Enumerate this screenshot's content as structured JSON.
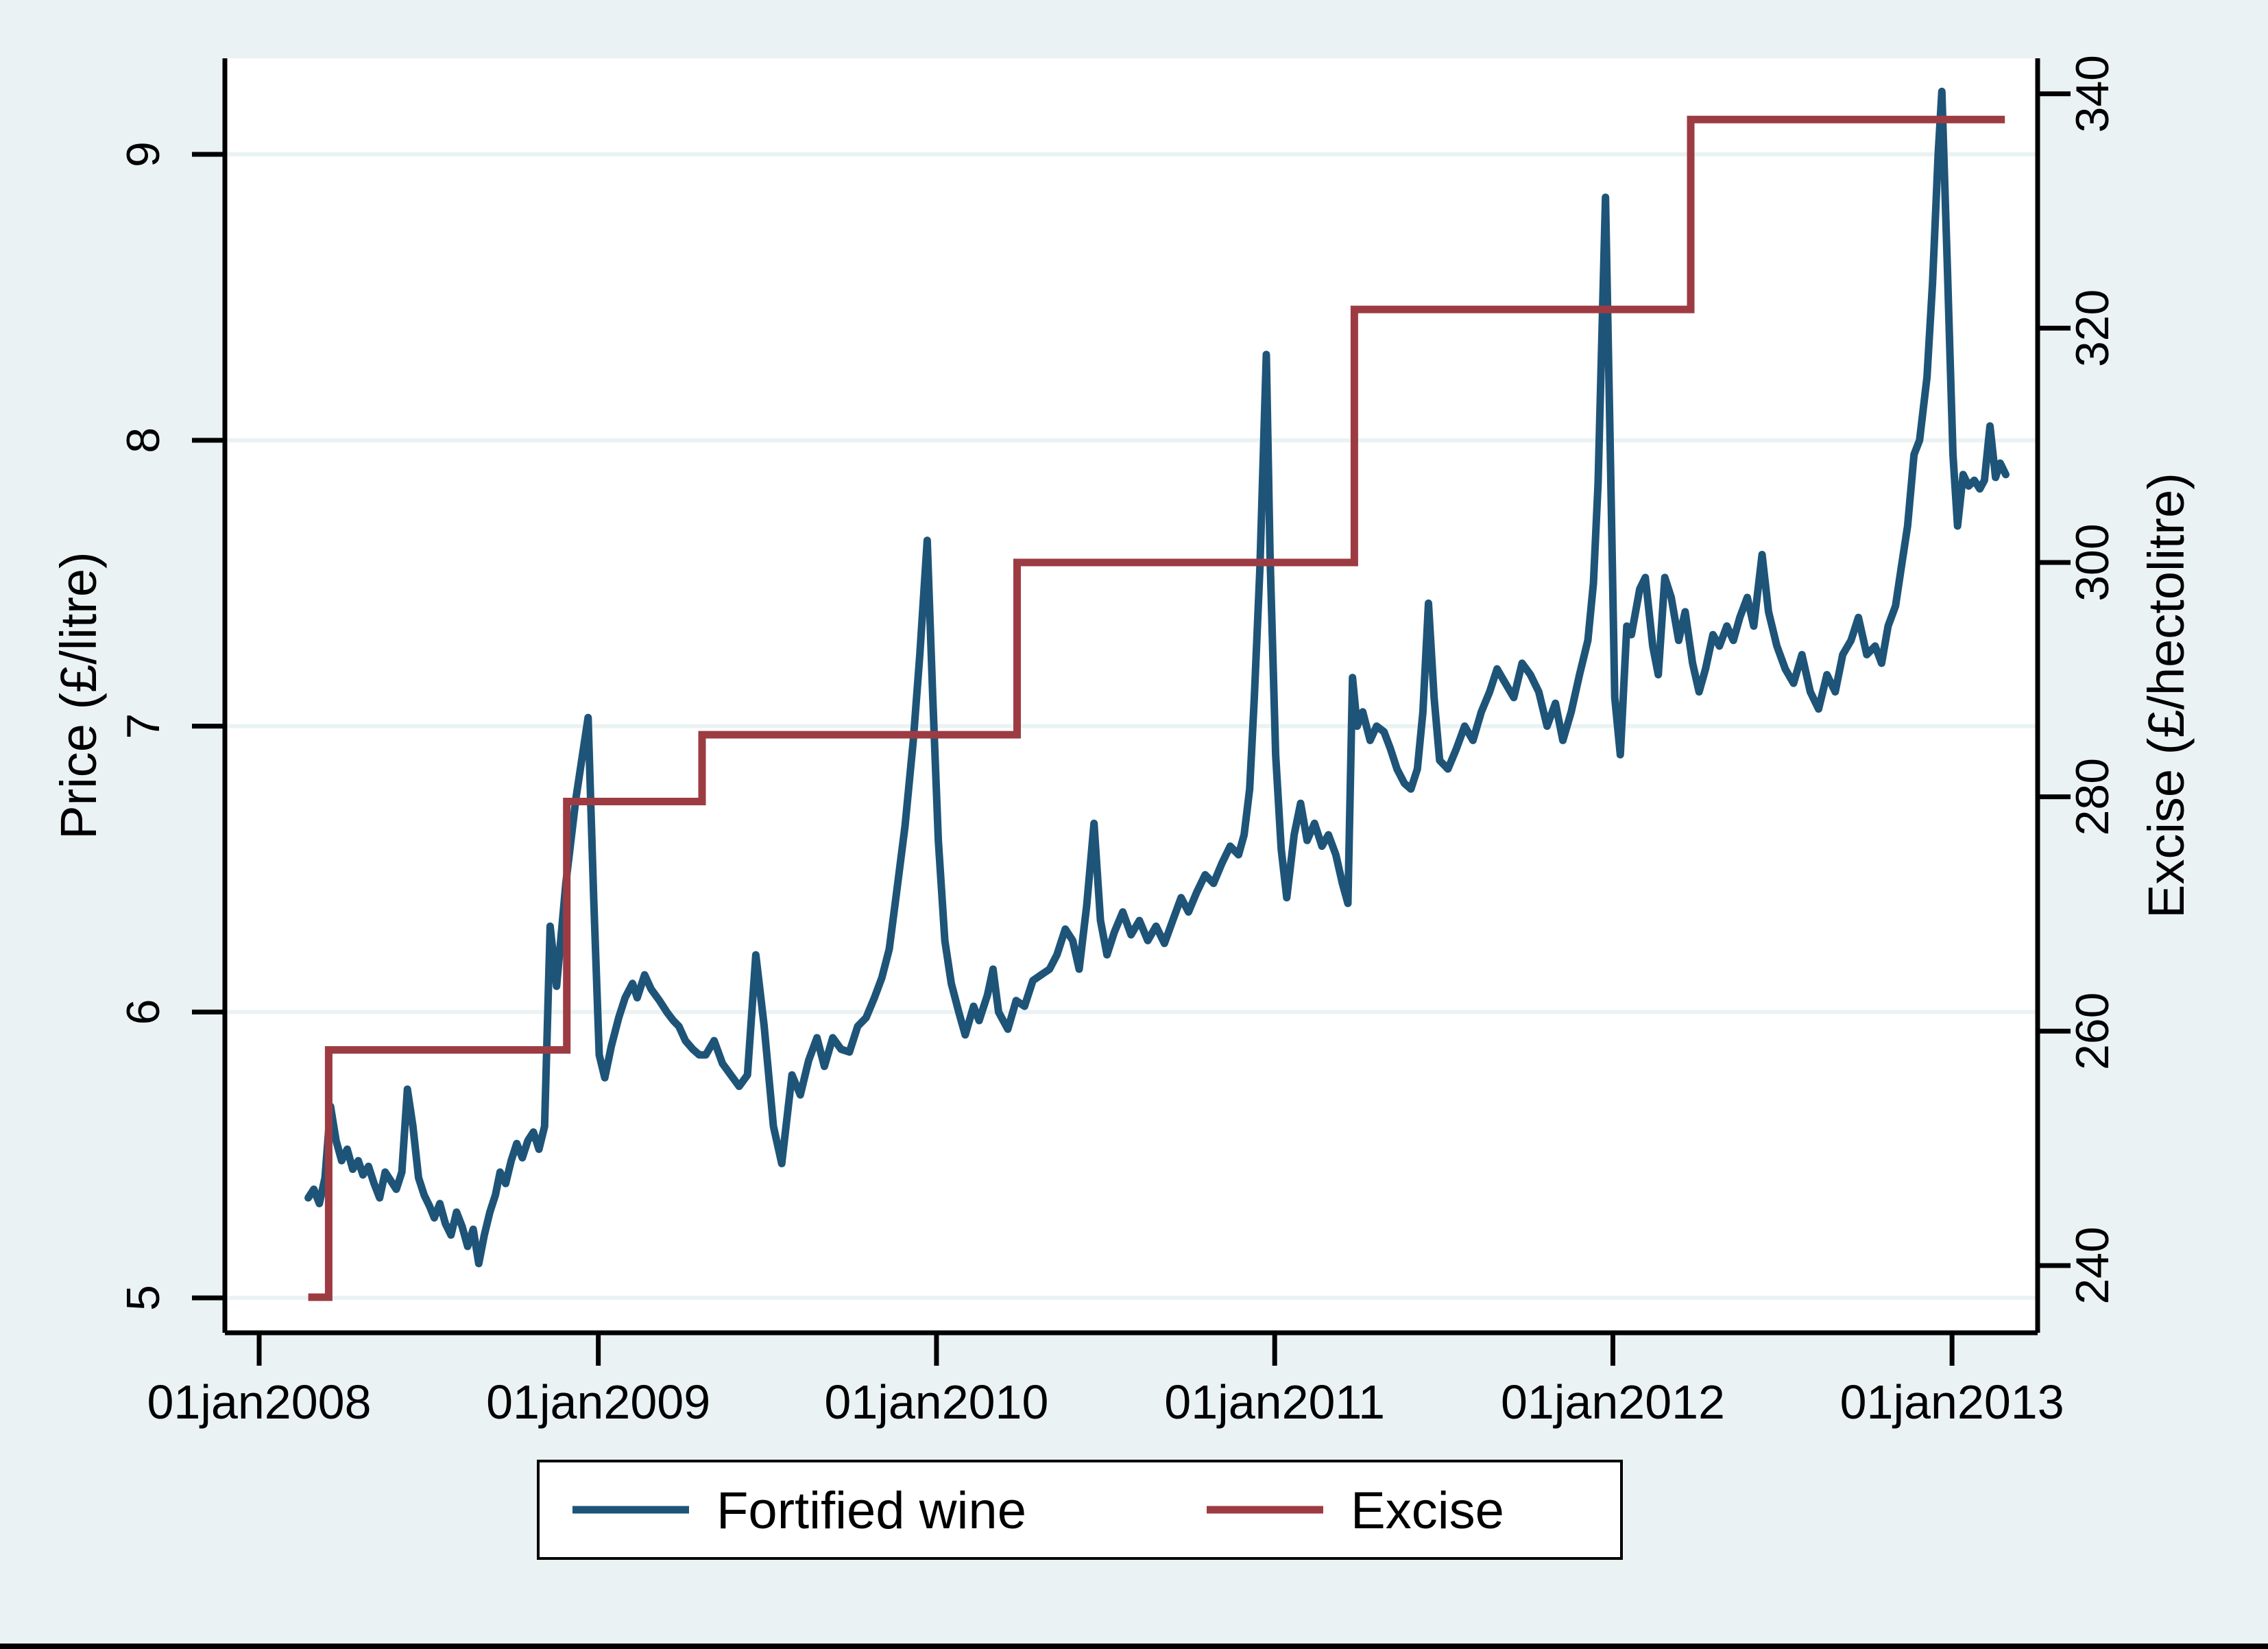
{
  "figure": {
    "colors": {
      "outer_background": "#eaf2f3",
      "plot_background": "#ffffff",
      "gridline": "#eaf2f3",
      "axis": "#000000",
      "wine_line": "#1e5478",
      "excise_line": "#9d3b43",
      "legend_fill": "#ffffff",
      "legend_border": "#000000",
      "bottom_edge": "#000000"
    }
  },
  "chart_data": {
    "type": "line",
    "title": "",
    "grid": "horizontal-only",
    "x_axis": {
      "tick_labels": [
        "01jan2008",
        "01jan2009",
        "01jan2010",
        "01jan2011",
        "01jan2012",
        "01jan2013"
      ],
      "tick_days": [
        0,
        366,
        731,
        1096,
        1461,
        1827
      ],
      "range_days": [
        -37,
        1919.4
      ],
      "units": "days since 01jan2008"
    },
    "left_axis": {
      "label": "Price (£/litre)",
      "ticks": [
        5,
        6,
        7,
        8,
        9
      ],
      "tick_labels": [
        "5",
        "6",
        "7",
        "8",
        "9"
      ],
      "range": [
        4.878,
        9.336
      ]
    },
    "right_axis": {
      "label": "Excise (£/hectolitre)",
      "ticks": [
        240,
        260,
        280,
        300,
        320,
        340
      ],
      "tick_labels": [
        "240",
        "260",
        "280",
        "300",
        "320",
        "340"
      ],
      "range": [
        234.26,
        343.03
      ]
    },
    "legend": {
      "position": "bottom-center",
      "entries": [
        "Fortified wine",
        "Excise"
      ]
    },
    "series": [
      {
        "name": "Fortified wine",
        "axis": "left",
        "color": "#1e5478",
        "style": "line",
        "points": [
          [
            53,
            5.35
          ],
          [
            59,
            5.38
          ],
          [
            65,
            5.33
          ],
          [
            71,
            5.42
          ],
          [
            77,
            5.67
          ],
          [
            83,
            5.55
          ],
          [
            89,
            5.48
          ],
          [
            95,
            5.52
          ],
          [
            101,
            5.45
          ],
          [
            107,
            5.48
          ],
          [
            112,
            5.43
          ],
          [
            118,
            5.46
          ],
          [
            124,
            5.4
          ],
          [
            130,
            5.35
          ],
          [
            136,
            5.44
          ],
          [
            142,
            5.41
          ],
          [
            148,
            5.38
          ],
          [
            154,
            5.44
          ],
          [
            160,
            5.73
          ],
          [
            166,
            5.6
          ],
          [
            172,
            5.42
          ],
          [
            178,
            5.36
          ],
          [
            184,
            5.32
          ],
          [
            189,
            5.28
          ],
          [
            195,
            5.33
          ],
          [
            201,
            5.26
          ],
          [
            207,
            5.22
          ],
          [
            213,
            5.3
          ],
          [
            219,
            5.25
          ],
          [
            225,
            5.18
          ],
          [
            231,
            5.24
          ],
          [
            237,
            5.12
          ],
          [
            243,
            5.22
          ],
          [
            249,
            5.3
          ],
          [
            255,
            5.36
          ],
          [
            260,
            5.44
          ],
          [
            266,
            5.4
          ],
          [
            272,
            5.48
          ],
          [
            278,
            5.54
          ],
          [
            284,
            5.49
          ],
          [
            290,
            5.55
          ],
          [
            296,
            5.58
          ],
          [
            302,
            5.52
          ],
          [
            308,
            5.6
          ],
          [
            314,
            6.3
          ],
          [
            321,
            6.09
          ],
          [
            331,
            6.45
          ],
          [
            342,
            6.75
          ],
          [
            355,
            7.03
          ],
          [
            361,
            6.4
          ],
          [
            367,
            5.85
          ],
          [
            373,
            5.77
          ],
          [
            380,
            5.88
          ],
          [
            388,
            5.98
          ],
          [
            395,
            6.05
          ],
          [
            403,
            6.1
          ],
          [
            408,
            6.05
          ],
          [
            416,
            6.13
          ],
          [
            423,
            6.08
          ],
          [
            432,
            6.04
          ],
          [
            440,
            6.0
          ],
          [
            447,
            5.97
          ],
          [
            453,
            5.95
          ],
          [
            460,
            5.9
          ],
          [
            468,
            5.87
          ],
          [
            475,
            5.85
          ],
          [
            482,
            5.85
          ],
          [
            491,
            5.9
          ],
          [
            500,
            5.82
          ],
          [
            509,
            5.78
          ],
          [
            518,
            5.74
          ],
          [
            527,
            5.78
          ],
          [
            536,
            6.2
          ],
          [
            545,
            5.95
          ],
          [
            555,
            5.6
          ],
          [
            564,
            5.47
          ],
          [
            575,
            5.78
          ],
          [
            584,
            5.71
          ],
          [
            593,
            5.83
          ],
          [
            602,
            5.91
          ],
          [
            610,
            5.81
          ],
          [
            619,
            5.91
          ],
          [
            628,
            5.87
          ],
          [
            637,
            5.86
          ],
          [
            646,
            5.95
          ],
          [
            655,
            5.98
          ],
          [
            664,
            6.05
          ],
          [
            672,
            6.12
          ],
          [
            680,
            6.22
          ],
          [
            688,
            6.42
          ],
          [
            697,
            6.65
          ],
          [
            706,
            6.95
          ],
          [
            713,
            7.25
          ],
          [
            721,
            7.65
          ],
          [
            727,
            7.1
          ],
          [
            733,
            6.6
          ],
          [
            740,
            6.25
          ],
          [
            747,
            6.1
          ],
          [
            755,
            6.0
          ],
          [
            762,
            5.92
          ],
          [
            771,
            6.02
          ],
          [
            777,
            5.97
          ],
          [
            786,
            6.06
          ],
          [
            792,
            6.15
          ],
          [
            798,
            6.0
          ],
          [
            808,
            5.94
          ],
          [
            817,
            6.04
          ],
          [
            826,
            6.02
          ],
          [
            835,
            6.11
          ],
          [
            844,
            6.13
          ],
          [
            853,
            6.15
          ],
          [
            861,
            6.2
          ],
          [
            870,
            6.29
          ],
          [
            878,
            6.25
          ],
          [
            885,
            6.15
          ],
          [
            893,
            6.37
          ],
          [
            901,
            6.66
          ],
          [
            908,
            6.32
          ],
          [
            915,
            6.2
          ],
          [
            923,
            6.28
          ],
          [
            932,
            6.35
          ],
          [
            941,
            6.27
          ],
          [
            950,
            6.32
          ],
          [
            959,
            6.25
          ],
          [
            968,
            6.3
          ],
          [
            977,
            6.24
          ],
          [
            986,
            6.32
          ],
          [
            995,
            6.4
          ],
          [
            1003,
            6.35
          ],
          [
            1012,
            6.42
          ],
          [
            1021,
            6.48
          ],
          [
            1030,
            6.45
          ],
          [
            1039,
            6.52
          ],
          [
            1048,
            6.58
          ],
          [
            1057,
            6.55
          ],
          [
            1063,
            6.62
          ],
          [
            1069,
            6.78
          ],
          [
            1074,
            7.1
          ],
          [
            1080,
            7.55
          ],
          [
            1087,
            8.3
          ],
          [
            1091,
            7.6
          ],
          [
            1097,
            6.9
          ],
          [
            1103,
            6.57
          ],
          [
            1109,
            6.4
          ],
          [
            1117,
            6.62
          ],
          [
            1124,
            6.73
          ],
          [
            1131,
            6.6
          ],
          [
            1139,
            6.66
          ],
          [
            1147,
            6.58
          ],
          [
            1154,
            6.62
          ],
          [
            1162,
            6.55
          ],
          [
            1169,
            6.45
          ],
          [
            1175,
            6.38
          ],
          [
            1180,
            7.17
          ],
          [
            1185,
            7.0
          ],
          [
            1191,
            7.05
          ],
          [
            1199,
            6.95
          ],
          [
            1206,
            7.0
          ],
          [
            1214,
            6.98
          ],
          [
            1221,
            6.92
          ],
          [
            1228,
            6.85
          ],
          [
            1236,
            6.8
          ],
          [
            1243,
            6.78
          ],
          [
            1250,
            6.85
          ],
          [
            1256,
            7.05
          ],
          [
            1262,
            7.43
          ],
          [
            1268,
            7.1
          ],
          [
            1274,
            6.88
          ],
          [
            1283,
            6.85
          ],
          [
            1292,
            6.92
          ],
          [
            1301,
            7.0
          ],
          [
            1310,
            6.95
          ],
          [
            1319,
            7.05
          ],
          [
            1328,
            7.12
          ],
          [
            1336,
            7.2
          ],
          [
            1345,
            7.15
          ],
          [
            1354,
            7.1
          ],
          [
            1363,
            7.22
          ],
          [
            1372,
            7.18
          ],
          [
            1381,
            7.12
          ],
          [
            1390,
            7.0
          ],
          [
            1399,
            7.08
          ],
          [
            1407,
            6.95
          ],
          [
            1416,
            7.05
          ],
          [
            1425,
            7.18
          ],
          [
            1434,
            7.3
          ],
          [
            1440,
            7.5
          ],
          [
            1445,
            7.85
          ],
          [
            1449,
            8.35
          ],
          [
            1453,
            8.85
          ],
          [
            1458,
            8.0
          ],
          [
            1463,
            7.1
          ],
          [
            1469,
            6.9
          ],
          [
            1476,
            7.35
          ],
          [
            1481,
            7.32
          ],
          [
            1490,
            7.48
          ],
          [
            1496,
            7.52
          ],
          [
            1504,
            7.28
          ],
          [
            1510,
            7.18
          ],
          [
            1517,
            7.52
          ],
          [
            1524,
            7.45
          ],
          [
            1532,
            7.3
          ],
          [
            1539,
            7.4
          ],
          [
            1547,
            7.22
          ],
          [
            1554,
            7.12
          ],
          [
            1561,
            7.2
          ],
          [
            1569,
            7.32
          ],
          [
            1576,
            7.28
          ],
          [
            1584,
            7.35
          ],
          [
            1591,
            7.3
          ],
          [
            1598,
            7.38
          ],
          [
            1606,
            7.45
          ],
          [
            1613,
            7.35
          ],
          [
            1622,
            7.6
          ],
          [
            1629,
            7.4
          ],
          [
            1638,
            7.28
          ],
          [
            1647,
            7.2
          ],
          [
            1656,
            7.15
          ],
          [
            1665,
            7.25
          ],
          [
            1674,
            7.12
          ],
          [
            1683,
            7.06
          ],
          [
            1692,
            7.18
          ],
          [
            1701,
            7.12
          ],
          [
            1709,
            7.25
          ],
          [
            1718,
            7.3
          ],
          [
            1726,
            7.38
          ],
          [
            1735,
            7.25
          ],
          [
            1744,
            7.28
          ],
          [
            1751,
            7.22
          ],
          [
            1758,
            7.35
          ],
          [
            1766,
            7.42
          ],
          [
            1772,
            7.55
          ],
          [
            1779,
            7.7
          ],
          [
            1786,
            7.95
          ],
          [
            1792,
            8.0
          ],
          [
            1800,
            8.22
          ],
          [
            1806,
            8.55
          ],
          [
            1812,
            9.0
          ],
          [
            1816,
            9.22
          ],
          [
            1822,
            8.6
          ],
          [
            1828,
            7.95
          ],
          [
            1833,
            7.7
          ],
          [
            1839,
            7.88
          ],
          [
            1845,
            7.84
          ],
          [
            1851,
            7.86
          ],
          [
            1857,
            7.83
          ],
          [
            1862,
            7.86
          ],
          [
            1868,
            8.05
          ],
          [
            1874,
            7.87
          ],
          [
            1879,
            7.92
          ],
          [
            1885,
            7.88
          ]
        ]
      },
      {
        "name": "Excise",
        "axis": "right",
        "color": "#9d3b43",
        "style": "step",
        "levels": [
          {
            "from": 53,
            "to": 75,
            "rate": 237.3
          },
          {
            "from": 75,
            "to": 332,
            "rate": 258.4
          },
          {
            "from": 332,
            "to": 478,
            "rate": 279.6
          },
          {
            "from": 478,
            "to": 818,
            "rate": 285.3
          },
          {
            "from": 818,
            "to": 1182,
            "rate": 300.0
          },
          {
            "from": 1182,
            "to": 1545,
            "rate": 321.6
          },
          {
            "from": 1545,
            "to": 1884,
            "rate": 337.8
          }
        ]
      }
    ]
  }
}
